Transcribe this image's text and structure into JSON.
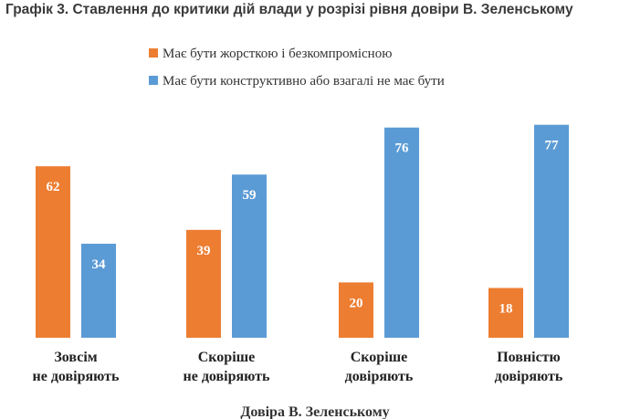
{
  "chart_data": {
    "type": "bar",
    "title": "Графік 3. Ставлення до критики дій влади у розрізі рівня довіри В. Зеленському",
    "xlabel": "Довіра В. Зеленському",
    "ylabel": "",
    "ylim": [
      0,
      100
    ],
    "grid": false,
    "legend_position": "top",
    "categories": [
      [
        "Зовсім",
        "не довіряють"
      ],
      [
        "Скоріше",
        "не довіряють"
      ],
      [
        "Скоріше",
        "довіряють"
      ],
      [
        "Повністю",
        "довіряють"
      ]
    ],
    "series": [
      {
        "name": "Має бути жорсткою і безкомпромісною",
        "color": "#ed7d31",
        "values": [
          62,
          39,
          20,
          18
        ]
      },
      {
        "name": "Має бути конструктивно або взагалі не має бути",
        "color": "#5b9bd5",
        "values": [
          34,
          59,
          76,
          77
        ]
      }
    ]
  }
}
